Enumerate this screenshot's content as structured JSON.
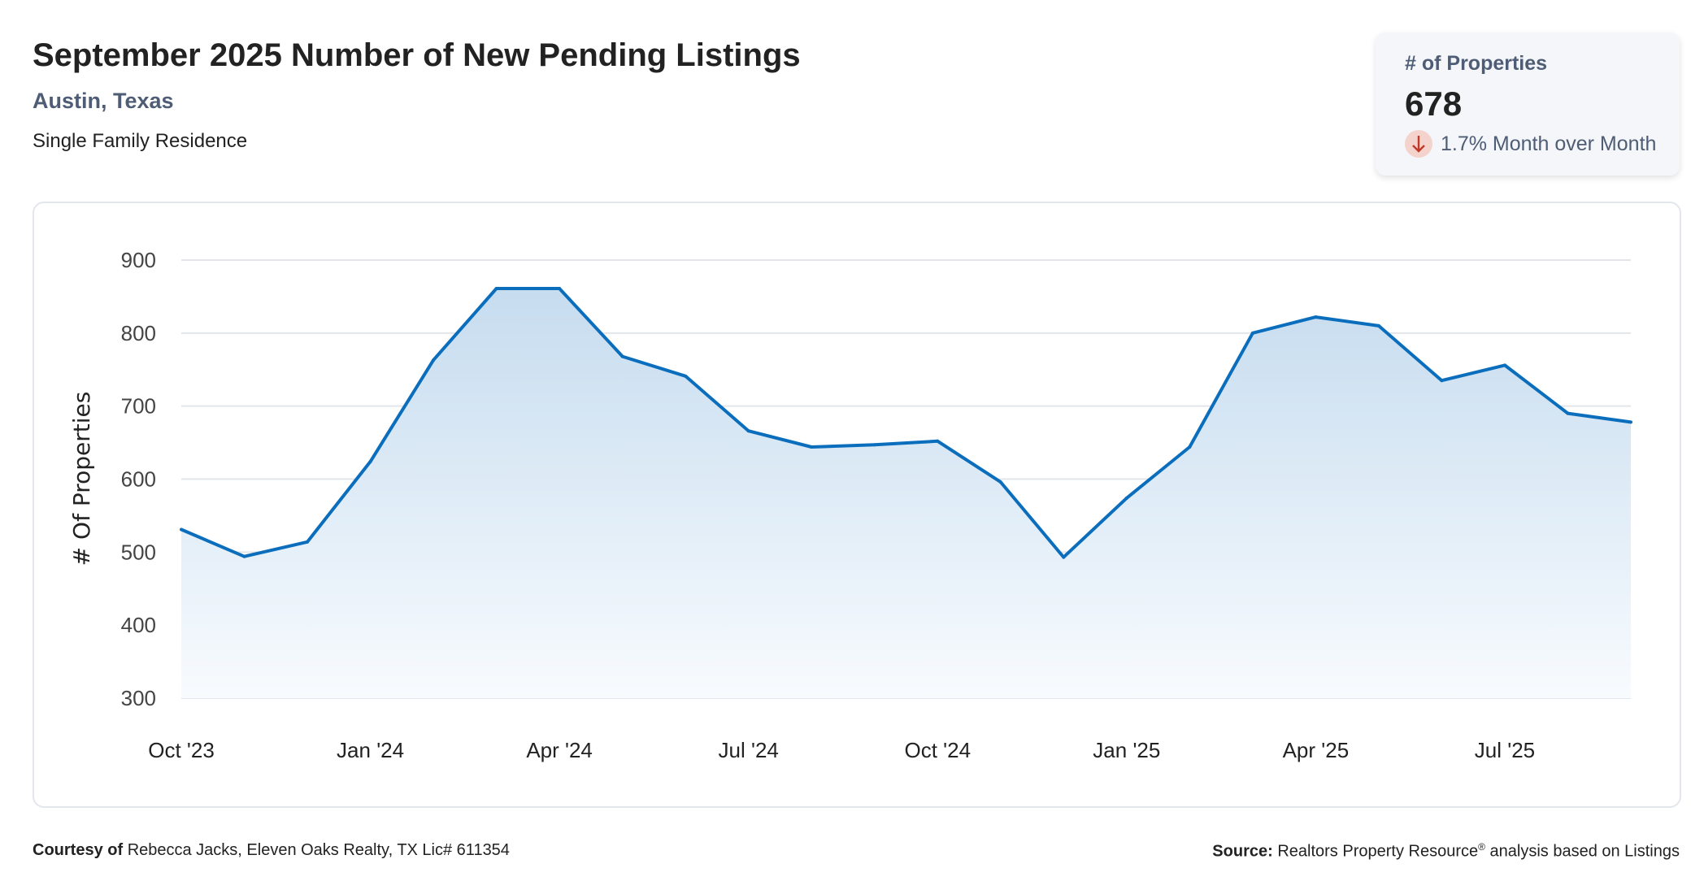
{
  "header": {
    "title": "September 2025 Number of New Pending Listings",
    "location": "Austin, Texas",
    "property_type": "Single Family Residence"
  },
  "kpi": {
    "label": "# of Properties",
    "value": "678",
    "change": "1.7% Month over Month",
    "direction_icon": "arrow-down-icon",
    "direction_color": "#c0392b"
  },
  "chart_data": {
    "type": "area",
    "ylabel": "# Of Properties",
    "xlabel": "",
    "ylim": [
      300,
      900
    ],
    "yticks": [
      "900",
      "800",
      "700",
      "600",
      "500",
      "400",
      "300"
    ],
    "grid": true,
    "line_color": "#0a6ebd",
    "x": [
      "Oct '23",
      "Nov '23",
      "Dec '23",
      "Jan '24",
      "Feb '24",
      "Mar '24",
      "Apr '24",
      "May '24",
      "Jun '24",
      "Jul '24",
      "Aug '24",
      "Sep '24",
      "Oct '24",
      "Nov '24",
      "Dec '24",
      "Jan '25",
      "Feb '25",
      "Mar '25",
      "Apr '25",
      "May '25",
      "Jun '25",
      "Jul '25",
      "Aug '25",
      "Sep '25"
    ],
    "xtick_labels": [
      "Oct '23",
      "Jan '24",
      "Apr '24",
      "Jul '24",
      "Oct '24",
      "Jan '25",
      "Apr '25",
      "Jul '25"
    ],
    "values": [
      531,
      494,
      514,
      624,
      763,
      861,
      861,
      768,
      741,
      666,
      644,
      647,
      652,
      596,
      493,
      574,
      644,
      800,
      822,
      810,
      735,
      756,
      690,
      678
    ]
  },
  "footer": {
    "courtesy_label": "Courtesy of",
    "courtesy_text": "Rebecca Jacks, Eleven Oaks Realty, TX Lic# 611354",
    "source_label": "Source:",
    "source_text": "Realtors Property Resource",
    "source_sup": "®",
    "source_suffix": "analysis based on Listings"
  }
}
